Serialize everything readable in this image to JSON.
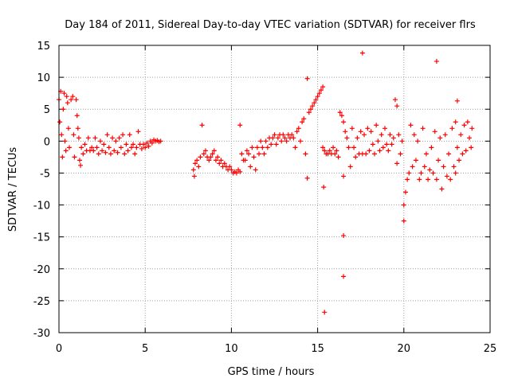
{
  "chart_data": {
    "type": "scatter",
    "title": "Day 184 of 2011, Sidereal Day-to-day VTEC variation (SDTVAR) for receiver flrs",
    "xlabel": "GPS time / hours",
    "ylabel": "SDTVAR / TECUs",
    "xlim": [
      0,
      25
    ],
    "ylim": [
      -30,
      15
    ],
    "grid": true,
    "xticks": [
      "0",
      "5",
      "10",
      "15",
      "20",
      "25"
    ],
    "yticks": [
      "15",
      "10",
      "5",
      "0",
      "-5",
      "-10",
      "-15",
      "-20",
      "-25",
      "-30"
    ],
    "marker": "+",
    "color": "#ff0000",
    "series": [
      {
        "name": "SDTVAR",
        "points": [
          [
            0.0,
            6.5
          ],
          [
            0.05,
            3.0
          ],
          [
            0.1,
            7.8
          ],
          [
            0.15,
            1.0
          ],
          [
            0.2,
            -2.5
          ],
          [
            0.25,
            5.0
          ],
          [
            0.3,
            7.5
          ],
          [
            0.35,
            0.0
          ],
          [
            0.4,
            -1.5
          ],
          [
            0.45,
            7.0
          ],
          [
            0.5,
            6.0
          ],
          [
            0.55,
            2.0
          ],
          [
            0.6,
            -1.0
          ],
          [
            0.7,
            6.5
          ],
          [
            0.8,
            7.0
          ],
          [
            0.85,
            1.0
          ],
          [
            0.9,
            -2.5
          ],
          [
            1.0,
            6.5
          ],
          [
            1.05,
            4.0
          ],
          [
            1.1,
            2.0
          ],
          [
            1.15,
            0.5
          ],
          [
            1.2,
            -3.0
          ],
          [
            1.25,
            -3.8
          ],
          [
            1.3,
            -1.0
          ],
          [
            1.4,
            -2.0
          ],
          [
            1.5,
            -0.5
          ],
          [
            1.6,
            -1.5
          ],
          [
            1.7,
            0.5
          ],
          [
            1.8,
            -1.5
          ],
          [
            1.9,
            -1.0
          ],
          [
            2.0,
            -1.5
          ],
          [
            2.1,
            0.5
          ],
          [
            2.2,
            -1.0
          ],
          [
            2.3,
            -2.0
          ],
          [
            2.4,
            0.0
          ],
          [
            2.5,
            -1.5
          ],
          [
            2.6,
            -0.5
          ],
          [
            2.7,
            -1.8
          ],
          [
            2.8,
            1.0
          ],
          [
            2.9,
            -1.0
          ],
          [
            3.0,
            -2.0
          ],
          [
            3.1,
            0.5
          ],
          [
            3.2,
            -1.5
          ],
          [
            3.3,
            0.0
          ],
          [
            3.4,
            -1.8
          ],
          [
            3.5,
            0.5
          ],
          [
            3.6,
            -1.0
          ],
          [
            3.7,
            1.0
          ],
          [
            3.8,
            -2.0
          ],
          [
            3.9,
            -0.5
          ],
          [
            4.0,
            -1.5
          ],
          [
            4.1,
            1.0
          ],
          [
            4.2,
            -1.0
          ],
          [
            4.3,
            -0.5
          ],
          [
            4.4,
            -2.0
          ],
          [
            4.5,
            -1.0
          ],
          [
            4.6,
            1.5
          ],
          [
            4.7,
            -0.5
          ],
          [
            4.8,
            -1.2
          ],
          [
            4.9,
            -0.5
          ],
          [
            5.0,
            -1.0
          ],
          [
            5.1,
            -0.3
          ],
          [
            5.2,
            -0.8
          ],
          [
            5.3,
            0.0
          ],
          [
            5.4,
            -0.3
          ],
          [
            5.5,
            0.2
          ],
          [
            5.6,
            0.0
          ],
          [
            5.7,
            0.1
          ],
          [
            5.8,
            -0.1
          ],
          [
            5.9,
            0.0
          ],
          [
            7.8,
            -4.5
          ],
          [
            7.85,
            -5.5
          ],
          [
            7.9,
            -3.5
          ],
          [
            8.0,
            -3.0
          ],
          [
            8.1,
            -4.0
          ],
          [
            8.2,
            -2.5
          ],
          [
            8.3,
            2.5
          ],
          [
            8.4,
            -2.0
          ],
          [
            8.5,
            -1.5
          ],
          [
            8.6,
            -2.5
          ],
          [
            8.7,
            -3.0
          ],
          [
            8.8,
            -2.5
          ],
          [
            8.9,
            -2.0
          ],
          [
            9.0,
            -1.5
          ],
          [
            9.1,
            -3.0
          ],
          [
            9.2,
            -2.5
          ],
          [
            9.3,
            -3.5
          ],
          [
            9.4,
            -3.0
          ],
          [
            9.5,
            -4.0
          ],
          [
            9.6,
            -3.5
          ],
          [
            9.7,
            -4.0
          ],
          [
            9.8,
            -4.5
          ],
          [
            9.9,
            -4.0
          ],
          [
            10.0,
            -4.5
          ],
          [
            10.1,
            -5.0
          ],
          [
            10.2,
            -4.8
          ],
          [
            10.3,
            -5.0
          ],
          [
            10.4,
            -4.5
          ],
          [
            10.5,
            2.5
          ],
          [
            10.5,
            -4.8
          ],
          [
            10.6,
            -2.0
          ],
          [
            10.7,
            -3.0
          ],
          [
            10.8,
            -3.0
          ],
          [
            10.9,
            -1.5
          ],
          [
            11.0,
            -2.0
          ],
          [
            11.1,
            -4.0
          ],
          [
            11.2,
            -1.0
          ],
          [
            11.3,
            -2.5
          ],
          [
            11.4,
            -4.5
          ],
          [
            11.5,
            -1.0
          ],
          [
            11.6,
            -2.0
          ],
          [
            11.7,
            0.0
          ],
          [
            11.8,
            -1.0
          ],
          [
            11.9,
            -2.0
          ],
          [
            12.0,
            0.0
          ],
          [
            12.1,
            -1.0
          ],
          [
            12.2,
            0.5
          ],
          [
            12.3,
            -0.5
          ],
          [
            12.4,
            0.5
          ],
          [
            12.5,
            1.0
          ],
          [
            12.6,
            -0.5
          ],
          [
            12.7,
            0.5
          ],
          [
            12.8,
            1.0
          ],
          [
            12.9,
            0.0
          ],
          [
            13.0,
            1.0
          ],
          [
            13.1,
            0.5
          ],
          [
            13.2,
            0.0
          ],
          [
            13.3,
            1.0
          ],
          [
            13.4,
            0.5
          ],
          [
            13.5,
            1.0
          ],
          [
            13.6,
            0.5
          ],
          [
            13.7,
            -1.0
          ],
          [
            13.8,
            1.5
          ],
          [
            13.9,
            2.0
          ],
          [
            14.0,
            0.0
          ],
          [
            14.1,
            3.0
          ],
          [
            14.2,
            3.5
          ],
          [
            14.3,
            -2.0
          ],
          [
            14.4,
            -5.8
          ],
          [
            14.4,
            9.8
          ],
          [
            14.5,
            4.5
          ],
          [
            14.6,
            5.0
          ],
          [
            14.7,
            5.5
          ],
          [
            14.8,
            6.0
          ],
          [
            14.9,
            6.5
          ],
          [
            15.0,
            7.0
          ],
          [
            15.1,
            7.5
          ],
          [
            15.2,
            8.0
          ],
          [
            15.3,
            8.5
          ],
          [
            15.3,
            -1.0
          ],
          [
            15.35,
            -7.2
          ],
          [
            15.4,
            -1.5
          ],
          [
            15.5,
            -2.0
          ],
          [
            15.6,
            -2.0
          ],
          [
            15.7,
            -1.5
          ],
          [
            15.8,
            -2.0
          ],
          [
            15.9,
            -1.0
          ],
          [
            15.4,
            -26.8
          ],
          [
            16.0,
            -2.0
          ],
          [
            16.1,
            -1.5
          ],
          [
            16.2,
            -2.5
          ],
          [
            16.3,
            4.5
          ],
          [
            16.4,
            4.0
          ],
          [
            16.5,
            3.0
          ],
          [
            16.5,
            -14.8
          ],
          [
            16.5,
            -21.2
          ],
          [
            16.5,
            -5.5
          ],
          [
            16.6,
            1.5
          ],
          [
            16.7,
            0.5
          ],
          [
            16.8,
            -1.0
          ],
          [
            16.9,
            -4.0
          ],
          [
            17.0,
            2.0
          ],
          [
            17.1,
            -1.0
          ],
          [
            17.2,
            -2.5
          ],
          [
            17.3,
            0.5
          ],
          [
            17.4,
            -2.0
          ],
          [
            17.5,
            1.5
          ],
          [
            17.6,
            -2.0
          ],
          [
            17.6,
            13.8
          ],
          [
            17.7,
            1.0
          ],
          [
            17.8,
            -2.0
          ],
          [
            17.9,
            2.0
          ],
          [
            18.0,
            -1.5
          ],
          [
            18.1,
            1.5
          ],
          [
            18.2,
            -0.5
          ],
          [
            18.3,
            -2.0
          ],
          [
            18.4,
            2.5
          ],
          [
            18.5,
            0.0
          ],
          [
            18.6,
            -1.5
          ],
          [
            18.7,
            1.0
          ],
          [
            18.8,
            -1.0
          ],
          [
            18.9,
            2.0
          ],
          [
            19.0,
            -0.5
          ],
          [
            19.1,
            -1.5
          ],
          [
            19.2,
            1.0
          ],
          [
            19.3,
            -0.5
          ],
          [
            19.4,
            0.5
          ],
          [
            19.5,
            6.5
          ],
          [
            19.6,
            5.5
          ],
          [
            19.6,
            -3.5
          ],
          [
            19.7,
            1.0
          ],
          [
            19.8,
            -2.0
          ],
          [
            19.9,
            0.0
          ],
          [
            20.0,
            -12.5
          ],
          [
            20.0,
            -10.0
          ],
          [
            20.1,
            -8.0
          ],
          [
            20.2,
            -6.0
          ],
          [
            20.3,
            -5.0
          ],
          [
            20.4,
            2.5
          ],
          [
            20.5,
            -4.0
          ],
          [
            20.6,
            1.0
          ],
          [
            20.7,
            -3.0
          ],
          [
            20.8,
            0.0
          ],
          [
            20.9,
            -6.0
          ],
          [
            21.0,
            -5.0
          ],
          [
            21.1,
            2.0
          ],
          [
            21.2,
            -4.0
          ],
          [
            21.3,
            -2.0
          ],
          [
            21.4,
            -6.0
          ],
          [
            21.5,
            -4.5
          ],
          [
            21.6,
            -1.0
          ],
          [
            21.7,
            -5.0
          ],
          [
            21.8,
            1.5
          ],
          [
            21.9,
            -6.0
          ],
          [
            21.9,
            12.5
          ],
          [
            22.0,
            -3.0
          ],
          [
            22.1,
            0.5
          ],
          [
            22.2,
            -7.5
          ],
          [
            22.3,
            -4.0
          ],
          [
            22.4,
            1.0
          ],
          [
            22.5,
            -5.5
          ],
          [
            22.6,
            -2.0
          ],
          [
            22.7,
            -6.0
          ],
          [
            22.8,
            2.0
          ],
          [
            22.9,
            -4.0
          ],
          [
            23.0,
            3.0
          ],
          [
            23.0,
            -5.0
          ],
          [
            23.1,
            -1.0
          ],
          [
            23.1,
            6.3
          ],
          [
            23.2,
            -3.0
          ],
          [
            23.3,
            1.0
          ],
          [
            23.4,
            -2.0
          ],
          [
            23.5,
            2.5
          ],
          [
            23.6,
            -1.5
          ],
          [
            23.7,
            3.0
          ],
          [
            23.8,
            0.5
          ],
          [
            23.9,
            -1.0
          ],
          [
            23.95,
            2.0
          ]
        ]
      }
    ]
  }
}
